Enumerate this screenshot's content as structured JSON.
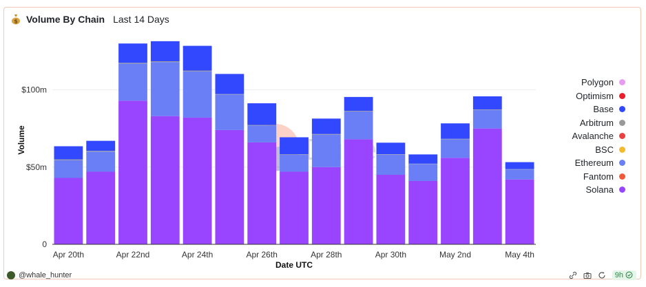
{
  "header": {
    "title": "Volume By Chain",
    "subtitle": "Last 14 Days"
  },
  "watermark": "Dune",
  "footer": {
    "user": "@whale_hunter",
    "age": "9h"
  },
  "colors": {
    "Polygon": "#e79cf2",
    "Optimism": "#e8202e",
    "Base": "#3148ff",
    "Arbitrum": "#999999",
    "Avalanche": "#e84142",
    "BSC": "#f3ba2f",
    "Ethereum": "#6a7ff5",
    "Fantom": "#f05a3a",
    "Solana": "#9945ff"
  },
  "legend": [
    "Polygon",
    "Optimism",
    "Base",
    "Arbitrum",
    "Avalanche",
    "BSC",
    "Ethereum",
    "Fantom",
    "Solana"
  ],
  "chart_data": {
    "type": "bar",
    "stacked": true,
    "xlabel": "Date UTC",
    "ylabel": "Volume",
    "ylim": [
      0,
      135
    ],
    "yticks": [
      0,
      50,
      100
    ],
    "ytick_labels": [
      "0",
      "$50m",
      "$100m"
    ],
    "categories": [
      "Apr 20th",
      "Apr 21st",
      "Apr 22nd",
      "Apr 23rd",
      "Apr 24th",
      "Apr 25th",
      "Apr 26th",
      "Apr 27th",
      "Apr 28th",
      "Apr 29th",
      "Apr 30th",
      "May 1st",
      "May 2nd",
      "May 3rd",
      "May 4th"
    ],
    "x_tick_labels": [
      "Apr 20th",
      "",
      "Apr 22nd",
      "",
      "Apr 24th",
      "",
      "Apr 26th",
      "",
      "Apr 28th",
      "",
      "Apr 30th",
      "",
      "May 2nd",
      "",
      "May 4th"
    ],
    "grid": true,
    "legend_position": "right",
    "series": [
      {
        "name": "Solana",
        "values": [
          43,
          47,
          93,
          83,
          82,
          74,
          66,
          47,
          50,
          68,
          45,
          41,
          56,
          75,
          42
        ]
      },
      {
        "name": "Ethereum",
        "values": [
          11.5,
          13,
          24,
          35,
          30,
          23,
          11,
          11,
          21,
          18,
          13,
          11,
          12,
          12,
          6.5
        ]
      },
      {
        "name": "Arbitrum",
        "values": [
          0.5,
          0.5,
          0.5,
          0.5,
          0.5,
          0.3,
          0.3,
          0.3,
          0.4,
          0.4,
          0.3,
          0.2,
          0.3,
          0.3,
          0.2
        ]
      },
      {
        "name": "Base",
        "values": [
          8.5,
          6.5,
          12.5,
          13,
          16,
          13,
          14,
          11,
          10,
          9,
          7.5,
          6,
          10,
          8.5,
          4.5
        ]
      }
    ]
  }
}
